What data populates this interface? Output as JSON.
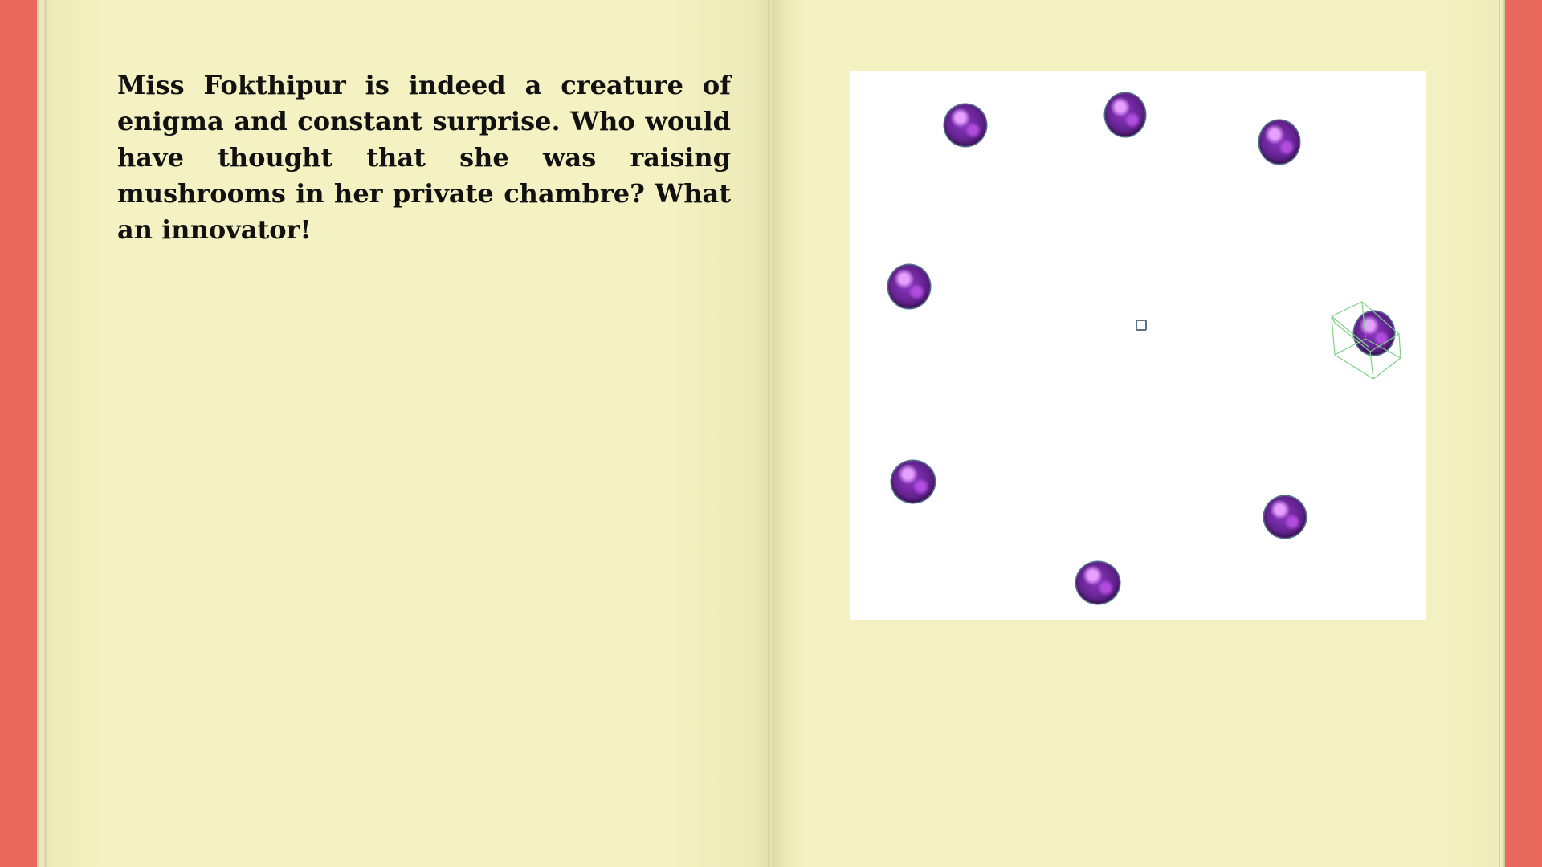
{
  "book": {
    "left_page": {
      "text": "Miss Fokthipur is indeed a creature of enigma and constant surprise. Who would have thought that she was raising mushrooms in her private chambre? What an innovator!"
    },
    "right_page": {
      "scene": {
        "objects": [
          {
            "name": "mushroom-1"
          },
          {
            "name": "mushroom-2"
          },
          {
            "name": "mushroom-3"
          },
          {
            "name": "mushroom-4"
          },
          {
            "name": "mushroom-5-selected"
          },
          {
            "name": "mushroom-6"
          },
          {
            "name": "mushroom-7"
          },
          {
            "name": "mushroom-8"
          }
        ],
        "colors": {
          "mushroom": "#7a2bb0",
          "panel_background": "#ffffff",
          "selection_box": "#7ed08a"
        }
      }
    }
  },
  "colors": {
    "cover": "#e9695f",
    "page": "#f4f1c1"
  }
}
